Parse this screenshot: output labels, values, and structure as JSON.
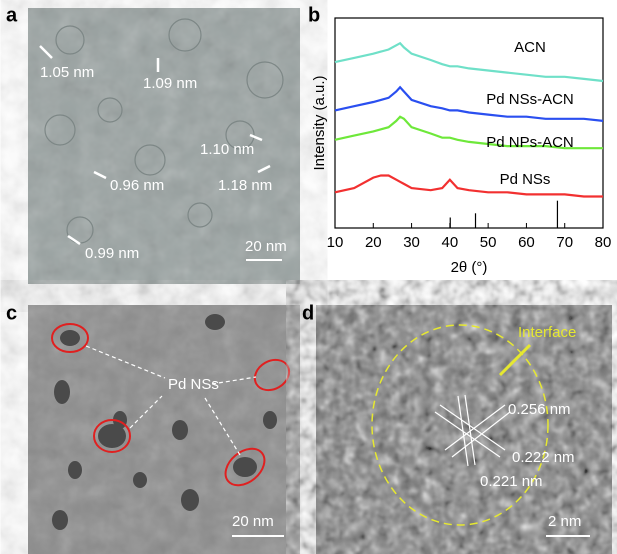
{
  "panels": {
    "a": {
      "label": "a",
      "annotations": [
        "1.05 nm",
        "1.09 nm",
        "1.10 nm",
        "1.18 nm",
        "0.96 nm",
        "0.99 nm"
      ],
      "scale_bar": "20 nm"
    },
    "c": {
      "label": "c",
      "annotation": "Pd NSs",
      "scale_bar": "20 nm"
    },
    "d": {
      "label": "d",
      "annotations": [
        "Interface",
        "0.256 nm",
        "0.222 nm",
        "0.221 nm"
      ],
      "scale_bar": "2 nm"
    }
  },
  "chart_data": {
    "type": "line",
    "panel_label": "b",
    "x_label": "2θ (°)",
    "y_label": "Intensity (a.u.)",
    "x": [
      10,
      15,
      20,
      22,
      24,
      26,
      27,
      28,
      30,
      35,
      38,
      40,
      42,
      45,
      50,
      55,
      60,
      65,
      70,
      75,
      80
    ],
    "series": [
      {
        "name": "ACN",
        "color": "#6fe0c8",
        "values": [
          79,
          81,
          83,
          84,
          85,
          87,
          88,
          86,
          83,
          80,
          78,
          77,
          77,
          76,
          75,
          74,
          73,
          72,
          72,
          71,
          70
        ]
      },
      {
        "name": "Pd NSs-ACN",
        "color": "#2a4ff0",
        "values": [
          56,
          58,
          60,
          61,
          62,
          65,
          67,
          65,
          61,
          58,
          57,
          56,
          56,
          55,
          54,
          53,
          53,
          52,
          52,
          52,
          51
        ]
      },
      {
        "name": "Pd NPs-ACN",
        "color": "#6ee83a",
        "values": [
          42,
          44,
          46,
          47,
          48,
          51,
          53,
          52,
          48,
          45,
          43,
          43,
          42,
          41,
          40,
          39,
          39,
          39,
          38,
          38,
          38
        ]
      },
      {
        "name": "Pd NSs",
        "color": "#f23030",
        "values": [
          17,
          19,
          24,
          25,
          25,
          23,
          22,
          21,
          19,
          18,
          19,
          23,
          19,
          18,
          17,
          17,
          16,
          16,
          16,
          15,
          15
        ]
      }
    ],
    "reference_peaks": {
      "x": [
        40.1,
        46.7,
        68.1
      ],
      "values": [
        5,
        7,
        13
      ]
    },
    "xlim": [
      10,
      80
    ],
    "ylim": [
      0,
      100
    ],
    "xticks": [
      10,
      20,
      30,
      40,
      50,
      60,
      70,
      80
    ]
  }
}
